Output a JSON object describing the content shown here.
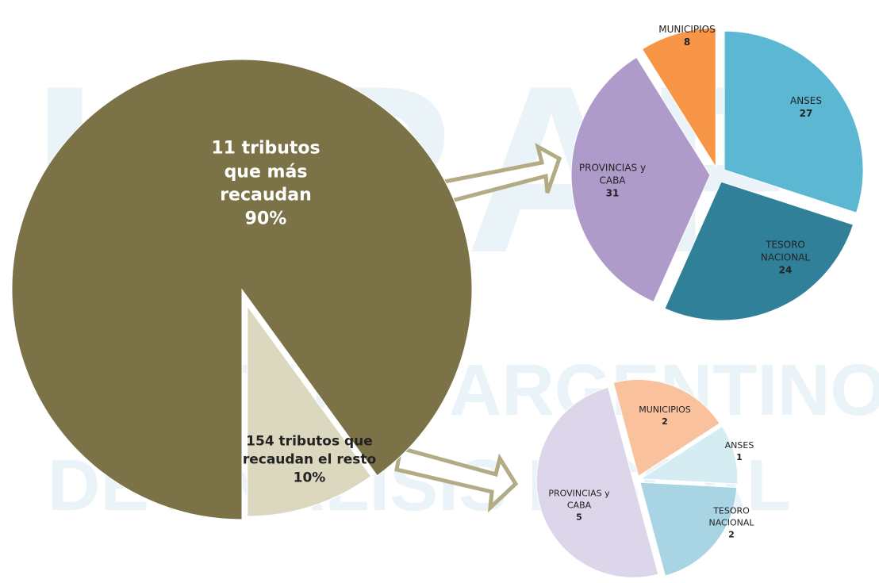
{
  "watermark": [
    "IARAF",
    "INSTITUTO ARGENTINO",
    "DE ANALISIS FISCAL"
  ],
  "chart_data": [
    {
      "type": "pie",
      "categories": [
        "11 tributos que más recaudan",
        "154 tributos que recaudan el resto"
      ],
      "values": [
        90,
        10
      ],
      "value_labels": [
        "90%",
        "10%"
      ],
      "colors": [
        "#7b7247",
        "#dcd7bf"
      ]
    },
    {
      "type": "pie",
      "categories": [
        "ANSES",
        "TESORO NACIONAL",
        "PROVINCIAS y CABA",
        "MUNICIPIOS"
      ],
      "values": [
        27,
        24,
        31,
        8
      ],
      "colors": [
        "#5bb7d2",
        "#31809a",
        "#ae9bc9",
        "#f79646"
      ]
    },
    {
      "type": "pie",
      "categories": [
        "MUNICIPIOS",
        "ANSES",
        "TESORO NACIONAL",
        "PROVINCIAS y CABA"
      ],
      "values": [
        2,
        1,
        2,
        5
      ],
      "colors": [
        "#f9c19c",
        "#d6ecf3",
        "#a9d4e3",
        "#ddd6ea"
      ]
    }
  ]
}
